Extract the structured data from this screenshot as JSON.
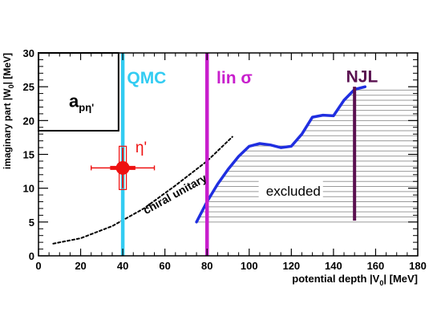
{
  "chart_data": {
    "type": "line",
    "xlabel": "potential depth |V",
    "xlabel_sub": "0",
    "xlabel_tail": "| [MeV]",
    "ylabel": "imaginary part |W",
    "ylabel_sub": "0",
    "ylabel_tail": "| [MeV]",
    "xlim": [
      0,
      180
    ],
    "ylim": [
      0,
      30
    ],
    "x_ticks": [
      0,
      20,
      40,
      60,
      80,
      100,
      120,
      140,
      160,
      180
    ],
    "y_ticks": [
      0,
      5,
      10,
      15,
      20,
      25,
      30
    ],
    "grid": false,
    "legend": "none",
    "inset_label": {
      "main": "a",
      "sub": "pη'"
    },
    "inset_box": {
      "x_max": 38,
      "y_min": 18.5
    },
    "vertical_lines": [
      {
        "label": "QMC",
        "x": 40,
        "y_range": [
          0,
          30
        ],
        "color": "#33ccf2"
      },
      {
        "label": "lin σ",
        "x": 80,
        "y_range": [
          0,
          30
        ],
        "color": "#c81ecc"
      },
      {
        "label": "NJL",
        "x": 150,
        "y_range": [
          5.2,
          25
        ],
        "color": "#5a1050"
      }
    ],
    "measurement": {
      "label": "η'",
      "x": 40,
      "y": 13,
      "x_err_stat": 6,
      "x_err_sys": 15,
      "y_err_stat": 3,
      "y_err_sys": 3.2,
      "color": "#ee1111"
    },
    "series": [
      {
        "name": "chiral unitary",
        "style": "dashed",
        "color": "#000000",
        "x": [
          7,
          20,
          35,
          50,
          65,
          80,
          92
        ],
        "y": [
          1.8,
          2.6,
          4.4,
          7.0,
          10.4,
          14.0,
          17.6
        ]
      },
      {
        "style": "solid",
        "color": "#1f2ee0",
        "x": [
          75,
          80,
          85,
          90,
          95,
          100,
          105,
          110,
          115,
          120,
          125,
          130,
          135,
          140,
          145,
          150,
          155
        ],
        "y": [
          5.0,
          8.0,
          10.6,
          12.8,
          14.7,
          16.2,
          16.6,
          16.4,
          16.0,
          16.2,
          18.0,
          20.5,
          20.8,
          20.7,
          23.0,
          24.6,
          25.0
        ]
      }
    ],
    "excluded_region": {
      "label": "excluded",
      "x_max": 180,
      "y_top": 25,
      "y_spacing": 0.75,
      "color": "#9a9a9a"
    }
  }
}
